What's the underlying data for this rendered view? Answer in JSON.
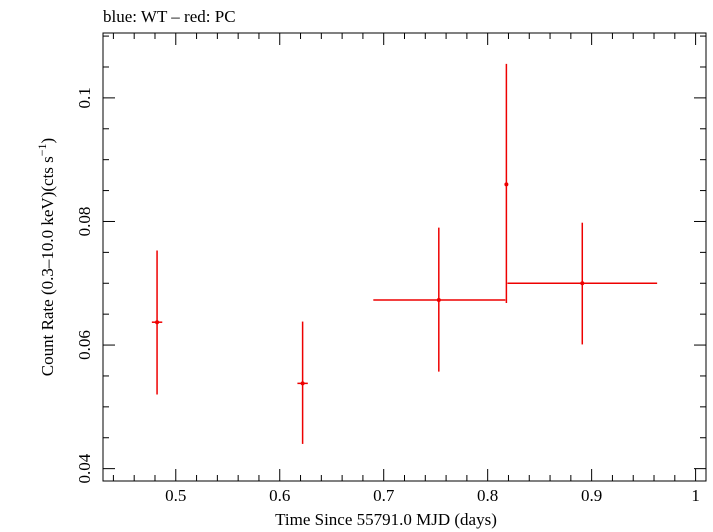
{
  "chart_data": {
    "type": "scatter",
    "title": "blue: WT – red: PC",
    "xlabel": "Time Since 55791.0 MJD (days)",
    "ylabel_main": "Count Rate (0.3–10.0 keV)(cts s",
    "ylabel_sup": "−1",
    "ylabel_end": ")",
    "xlim": [
      0.43,
      1.01
    ],
    "ylim": [
      0.038,
      0.1105
    ],
    "x_ticks": [
      0.5,
      0.6,
      0.7,
      0.8,
      0.9,
      1
    ],
    "x_tick_labels": [
      "0.5",
      "0.6",
      "0.7",
      "0.8",
      "0.9",
      "1"
    ],
    "x_minor_step": 0.02,
    "y_ticks": [
      0.04,
      0.06,
      0.08,
      0.1
    ],
    "y_tick_labels": [
      "0.04",
      "0.06",
      "0.08",
      "0.1"
    ],
    "y_minor_step": 0.005,
    "grid": false,
    "series": [
      {
        "color": "#ee0000",
        "points": [
          {
            "x": 0.482,
            "xlo": 0.477,
            "xhi": 0.487,
            "y": 0.0637,
            "ylo": 0.052,
            "yhi": 0.0753
          },
          {
            "x": 0.622,
            "xlo": 0.617,
            "xhi": 0.627,
            "y": 0.0538,
            "ylo": 0.044,
            "yhi": 0.0638
          },
          {
            "x": 0.753,
            "xlo": 0.69,
            "xhi": 0.817,
            "y": 0.0673,
            "ylo": 0.0557,
            "yhi": 0.079
          },
          {
            "x": 0.818,
            "xlo": 0.8165,
            "xhi": 0.8195,
            "y": 0.086,
            "ylo": 0.0668,
            "yhi": 0.1055
          },
          {
            "x": 0.891,
            "xlo": 0.819,
            "xhi": 0.963,
            "y": 0.07,
            "ylo": 0.0601,
            "yhi": 0.0798
          }
        ]
      }
    ]
  }
}
